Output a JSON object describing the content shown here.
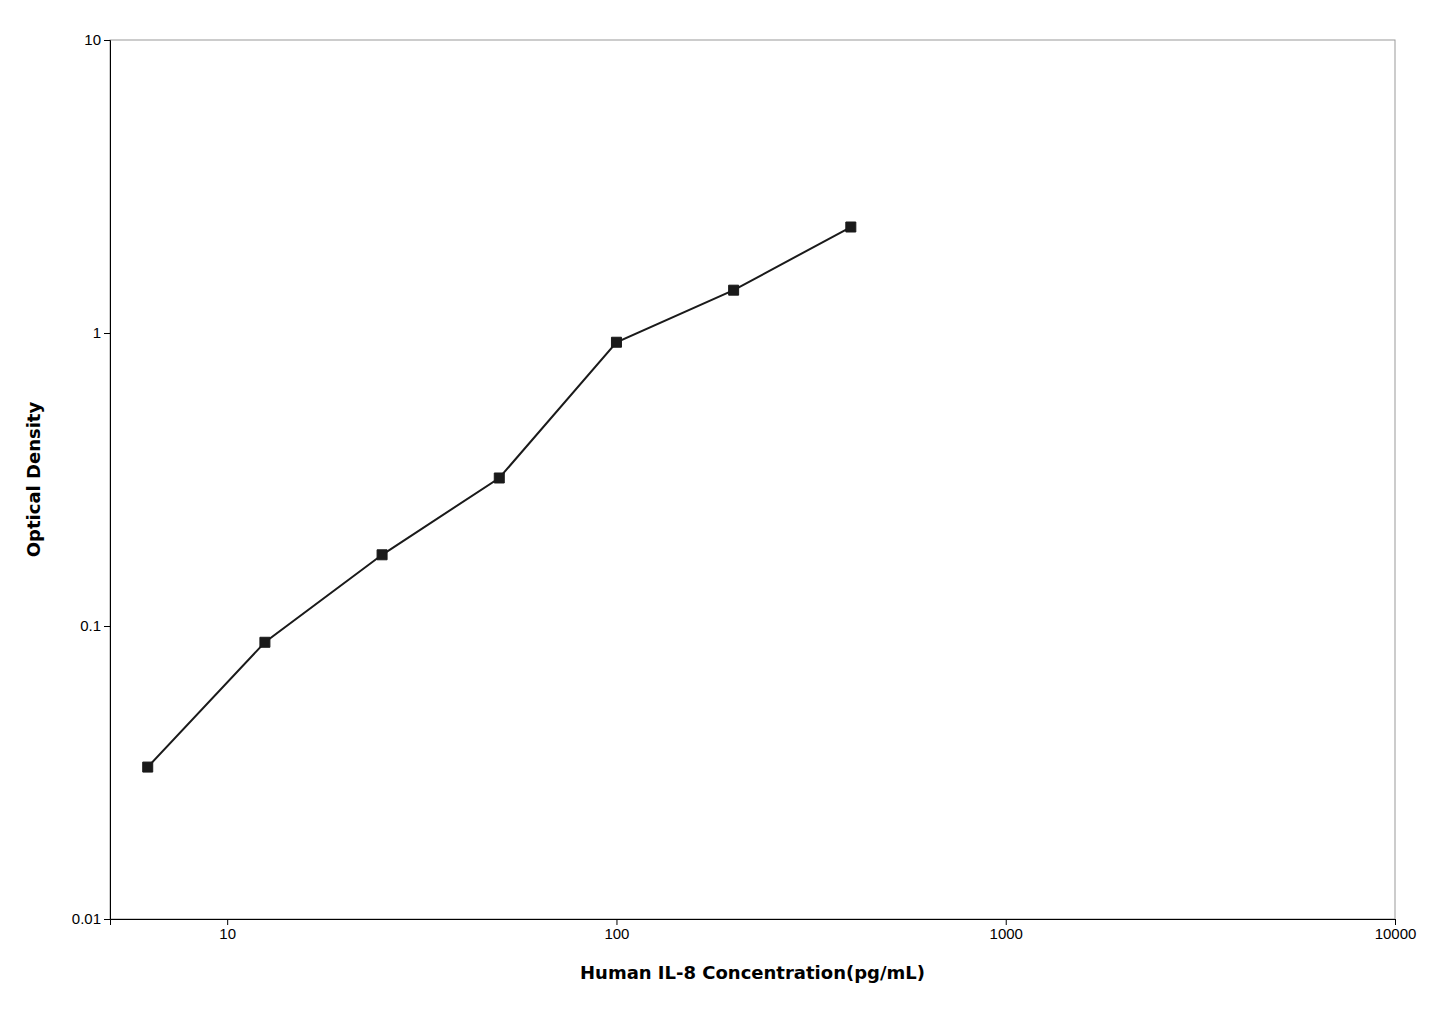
{
  "chart_data": {
    "type": "line",
    "x": [
      6.25,
      12.5,
      25,
      50,
      100,
      200,
      400
    ],
    "values": [
      0.033,
      0.088,
      0.175,
      0.32,
      0.93,
      1.4,
      2.3
    ],
    "xlabel": "Human IL-8 Concentration(pg/mL)",
    "ylabel": "Optical Density",
    "log": true,
    "xlim": [
      5,
      10000
    ],
    "ylim": [
      0.01,
      10
    ],
    "xticks": [
      10,
      100,
      1000,
      10000
    ],
    "yticks": [
      0.01,
      0.1,
      1,
      10
    ],
    "color": "#1a1a1a",
    "marker": "square",
    "grid": false
  }
}
